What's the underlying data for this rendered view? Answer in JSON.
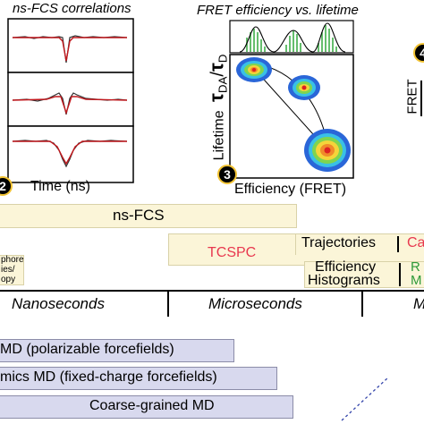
{
  "panel1": {
    "title": "ns-FCS correlations",
    "xlabel": "Time (ns)",
    "badge": "2"
  },
  "panel2": {
    "title": "FRET efficiency vs. lifetime",
    "ylabel_prefix": "Lifetime",
    "ylabel_ratio_top": "τ",
    "ylabel_sub1": "DA",
    "ylabel_sep": "/",
    "ylabel_ratio_bot": "τ",
    "ylabel_sub2": "D",
    "xlabel": "Efficiency (FRET)",
    "badge": "3"
  },
  "panel4": {
    "badge": "4",
    "ylabel": "FRET"
  },
  "bands": {
    "nsfcs": "ns-FCS",
    "phore_line1": "phore",
    "phore_line2": "ies/",
    "phore_line3": "opy",
    "tcspc": "TCSPC",
    "trajectories": "Trajectories",
    "trajectories_tail": "Ca",
    "efficiency": "Efficiency",
    "histograms": "Histograms",
    "eff_tail1": "R",
    "eff_tail2": "M"
  },
  "timescale": {
    "ns": "Nanoseconds",
    "us": "Microseconds",
    "ms_partial": "M"
  },
  "md": {
    "polarizable": "MD (polarizable forcefields)",
    "fixed": "mics MD (fixed-charge forcefields)",
    "coarse": "Coarse-grained MD"
  },
  "colors": {
    "tcspc": "#e8384f",
    "green_tail": "#2e9a3a",
    "band_fill": "#fbf5d8",
    "md_fill": "#d8d9ee"
  }
}
